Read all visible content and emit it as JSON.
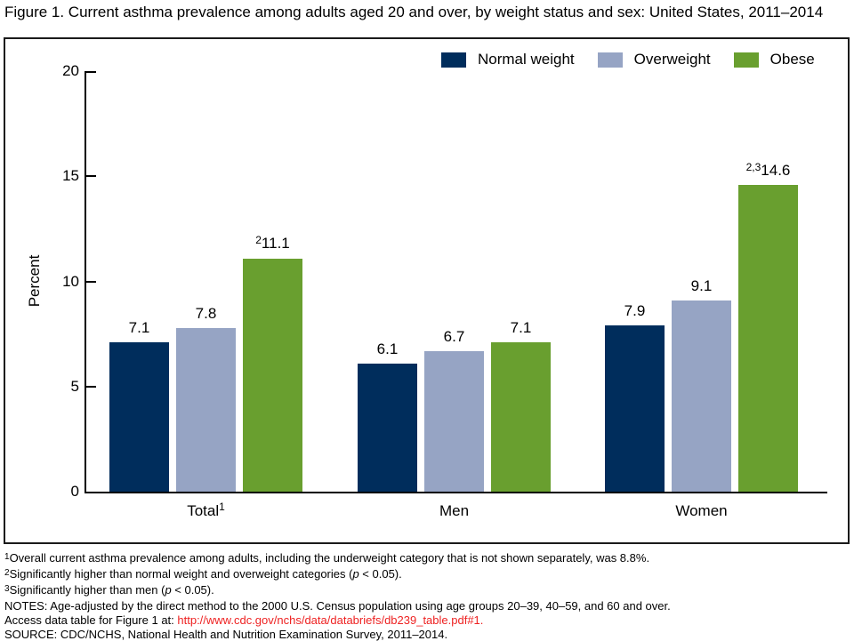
{
  "title": "Figure 1. Current asthma prevalence among adults aged 20 and over, by weight status and sex: United States, 2011–2014",
  "chart_data": {
    "type": "bar",
    "categories": [
      "Total",
      "Men",
      "Women"
    ],
    "category_sups": [
      "1",
      "",
      ""
    ],
    "series": [
      {
        "name": "Normal weight",
        "color": "#002d5c",
        "values": [
          7.1,
          6.1,
          7.9
        ],
        "value_sups": [
          "",
          "",
          ""
        ]
      },
      {
        "name": "Overweight",
        "color": "#96a4c4",
        "values": [
          7.8,
          6.7,
          9.1
        ],
        "value_sups": [
          "",
          "",
          ""
        ]
      },
      {
        "name": "Obese",
        "color": "#699f2f",
        "values": [
          11.1,
          7.1,
          14.6
        ],
        "value_sups": [
          "2",
          "",
          "2,3"
        ]
      }
    ],
    "ylabel": "Percent",
    "ylim": [
      0,
      20
    ],
    "yticks": [
      0,
      5,
      10,
      15,
      20
    ],
    "legend_position": "top-right",
    "grid": false
  },
  "footnotes": [
    {
      "sup": "1",
      "segments": [
        {
          "text": "Overall current asthma prevalence among adults, including the underweight category that is not shown separately, was 8.8%."
        }
      ]
    },
    {
      "sup": "2",
      "segments": [
        {
          "text": "Significantly higher than normal weight and overweight categories ("
        },
        {
          "text": "p",
          "style": "italic"
        },
        {
          "text": " < 0.05)."
        }
      ]
    },
    {
      "sup": "3",
      "segments": [
        {
          "text": "Significantly higher than men ("
        },
        {
          "text": "p",
          "style": "italic"
        },
        {
          "text": " < 0.05)."
        }
      ]
    },
    {
      "sup": "",
      "segments": [
        {
          "text": "NOTES: Age-adjusted by the direct method to the 2000 U.S. Census population using age groups 20–39, 40–59, and 60 and over."
        }
      ]
    },
    {
      "sup": "",
      "segments": [
        {
          "text": "Access data table for Figure 1 at: "
        },
        {
          "text": "http://www.cdc.gov/nchs/data/databriefs/db239_table.pdf#1.",
          "style": "link"
        }
      ]
    },
    {
      "sup": "",
      "segments": [
        {
          "text": "SOURCE: CDC/NCHS, National Health and Nutrition Examination Survey, 2011–2014."
        }
      ]
    }
  ],
  "colors": {
    "link": "#ee2222",
    "axis": "#000000",
    "frame_border": "#1a1a1a"
  }
}
